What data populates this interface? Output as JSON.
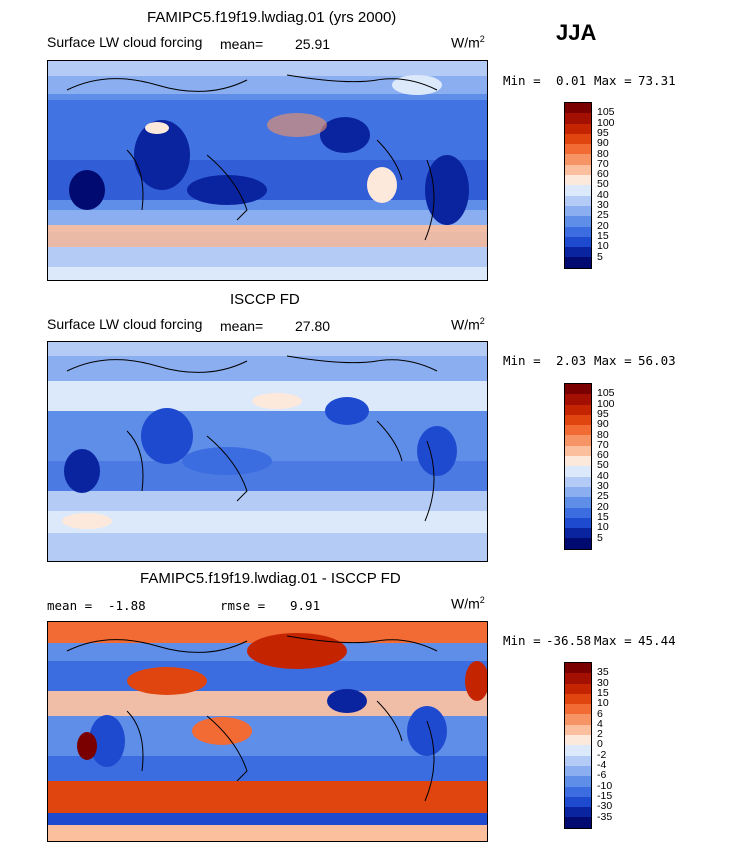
{
  "season": "JJA",
  "panels": [
    {
      "title": "FAMIPC5.f19f19.lwdiag.01 (yrs 2000)",
      "variable": "Surface LW cloud forcing",
      "mean_label": "mean=",
      "mean_value": "25.91",
      "units": "W/m",
      "units_sup": "2",
      "min_label": "Min =",
      "min_value": "0.01",
      "max_label": "Max =",
      "max_value": "73.31",
      "levels": [
        "105",
        "100",
        "95",
        "90",
        "80",
        "70",
        "60",
        "50",
        "40",
        "30",
        "25",
        "20",
        "15",
        "10",
        "5"
      ]
    },
    {
      "title": "ISCCP FD",
      "variable": "Surface LW cloud forcing",
      "mean_label": "mean=",
      "mean_value": "27.80",
      "units": "W/m",
      "units_sup": "2",
      "min_label": "Min =",
      "min_value": "2.03",
      "max_label": "Max =",
      "max_value": "56.03",
      "levels": [
        "105",
        "100",
        "95",
        "90",
        "80",
        "70",
        "60",
        "50",
        "40",
        "30",
        "25",
        "20",
        "15",
        "10",
        "5"
      ]
    },
    {
      "title": "FAMIPC5.f19f19.lwdiag.01 - ISCCP FD",
      "mean_label": "mean =",
      "mean_value": "-1.88",
      "rmse_label": "rmse =",
      "rmse_value": "9.91",
      "units": "W/m",
      "units_sup": "2",
      "min_label": "Min =",
      "min_value": "-36.58",
      "max_label": "Max =",
      "max_value": "45.44",
      "levels": [
        "35",
        "30",
        "15",
        "10",
        "6",
        "4",
        "2",
        "0",
        "-2",
        "-4",
        "-6",
        "-10",
        "-15",
        "-30",
        "-35"
      ]
    }
  ],
  "colors": {
    "abs_scale": [
      "#7a0000",
      "#a30f00",
      "#c42400",
      "#e0440f",
      "#f26a34",
      "#f79466",
      "#fbbf9e",
      "#fde9dc",
      "#dce9fb",
      "#b4ccf5",
      "#8aaef0",
      "#5f8ee8",
      "#3b6de0",
      "#1e4ad0",
      "#0a24a0",
      "#000a70"
    ],
    "diff_scale": [
      "#7a0000",
      "#a30f00",
      "#c42400",
      "#e0440f",
      "#f26a34",
      "#f79466",
      "#fbbf9e",
      "#fde9dc",
      "#dce9fb",
      "#b4ccf5",
      "#8aaef0",
      "#5f8ee8",
      "#3b6de0",
      "#1e4ad0",
      "#0a24a0",
      "#000a70"
    ]
  }
}
